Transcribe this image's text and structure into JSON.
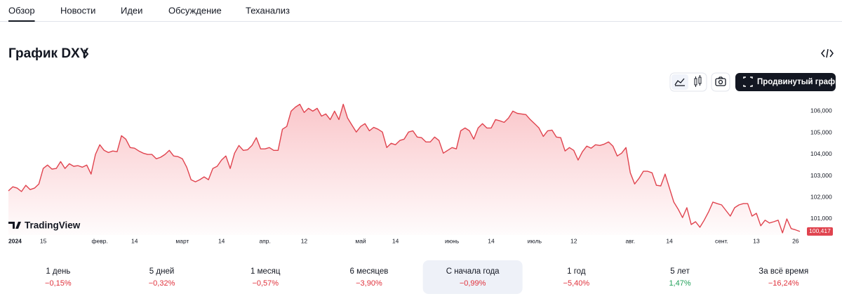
{
  "tabs": [
    "Обзор",
    "Новости",
    "Идеи",
    "Обсуждение",
    "Теханализ"
  ],
  "active_tab": 0,
  "header": {
    "title": "График DXY"
  },
  "toolbar": {
    "advanced_button": "Продвинутый график"
  },
  "chart_data": {
    "type": "line",
    "color": "#e0434e",
    "watermark": "TradingView",
    "values": [
      102.3,
      102.49,
      102.43,
      102.27,
      102.56,
      102.36,
      102.43,
      102.62,
      103.34,
      103.5,
      103.31,
      103.34,
      103.66,
      103.34,
      103.56,
      103.44,
      103.47,
      103.4,
      103.5,
      103.08,
      103.99,
      104.44,
      104.18,
      104.08,
      104.15,
      104.12,
      104.86,
      104.7,
      104.31,
      104.28,
      104.15,
      104.05,
      103.99,
      103.99,
      103.79,
      103.86,
      103.99,
      104.18,
      103.92,
      103.89,
      103.79,
      103.4,
      102.82,
      102.72,
      102.82,
      102.95,
      102.82,
      103.34,
      103.44,
      103.73,
      103.92,
      103.34,
      104.05,
      104.41,
      104.18,
      104.21,
      104.41,
      104.77,
      104.25,
      104.25,
      104.31,
      104.18,
      104.18,
      105.16,
      105.29,
      106.0,
      106.19,
      106.32,
      105.94,
      106.13,
      106.0,
      106.13,
      105.77,
      105.87,
      105.61,
      106.0,
      105.61,
      106.32,
      105.68,
      105.35,
      105.03,
      105.29,
      105.42,
      105.09,
      105.25,
      105.16,
      105.03,
      104.31,
      104.51,
      104.44,
      104.64,
      104.7,
      105.03,
      105.09,
      104.8,
      104.77,
      104.57,
      104.57,
      104.8,
      104.64,
      104.05,
      104.18,
      104.31,
      104.25,
      105.09,
      105.22,
      105.09,
      104.7,
      105.22,
      105.42,
      105.22,
      105.22,
      105.61,
      105.55,
      105.48,
      105.68,
      106.0,
      105.9,
      105.87,
      105.84,
      105.61,
      105.42,
      105.22,
      104.83,
      105.09,
      105.12,
      104.8,
      104.77,
      104.15,
      104.31,
      104.18,
      103.73,
      104.12,
      104.38,
      104.28,
      104.44,
      104.41,
      104.47,
      104.57,
      104.38,
      103.92,
      104.05,
      104.31,
      103.14,
      102.62,
      102.88,
      103.21,
      103.21,
      103.14,
      102.56,
      102.53,
      103.08,
      102.43,
      101.78,
      101.45,
      101.06,
      101.52,
      100.74,
      100.87,
      100.61,
      100.94,
      101.32,
      101.78,
      101.71,
      101.65,
      101.39,
      101.13,
      101.52,
      101.65,
      101.71,
      101.71,
      101.13,
      101.26,
      100.68,
      100.94,
      100.81,
      100.87,
      100.94,
      100.35,
      101.0,
      100.55,
      100.49,
      100.417
    ],
    "xlim": [
      0,
      182
    ],
    "xticks": [
      {
        "value": 0,
        "label": "2024"
      },
      {
        "value": 8,
        "label": "15"
      },
      {
        "value": 21,
        "label": "февр."
      },
      {
        "value": 29,
        "label": "14"
      },
      {
        "value": 40,
        "label": "март"
      },
      {
        "value": 49,
        "label": "14"
      },
      {
        "value": 59,
        "label": "апр."
      },
      {
        "value": 68,
        "label": "12"
      },
      {
        "value": 81,
        "label": "май"
      },
      {
        "value": 89,
        "label": "14"
      },
      {
        "value": 102,
        "label": "июнь"
      },
      {
        "value": 111,
        "label": "14"
      },
      {
        "value": 121,
        "label": "июль"
      },
      {
        "value": 130,
        "label": "12"
      },
      {
        "value": 143,
        "label": "авг."
      },
      {
        "value": 152,
        "label": "14"
      },
      {
        "value": 164,
        "label": "сент."
      },
      {
        "value": 172,
        "label": "13"
      },
      {
        "value": 181,
        "label": "26"
      }
    ],
    "ylim": [
      100.25,
      106.6
    ],
    "yticks": [
      {
        "value": 101,
        "label": "101,000"
      },
      {
        "value": 102,
        "label": "102,000"
      },
      {
        "value": 103,
        "label": "103,000"
      },
      {
        "value": 104,
        "label": "104,000"
      },
      {
        "value": 105,
        "label": "105,000"
      },
      {
        "value": 106,
        "label": "106,000"
      }
    ],
    "price_label": {
      "value": 100.417,
      "label": "100,417"
    }
  },
  "periods": [
    {
      "label": "1 день",
      "change": "−0,15%",
      "color": "#e0323c"
    },
    {
      "label": "5 дней",
      "change": "−0,32%",
      "color": "#e0323c"
    },
    {
      "label": "1 месяц",
      "change": "−0,57%",
      "color": "#e0323c"
    },
    {
      "label": "6 месяцев",
      "change": "−3,90%",
      "color": "#e0323c"
    },
    {
      "label": "С начала года",
      "change": "−0,99%",
      "color": "#e0323c"
    },
    {
      "label": "1 год",
      "change": "−5,40%",
      "color": "#e0323c"
    },
    {
      "label": "5 лет",
      "change": "1,47%",
      "color": "#22a05a"
    },
    {
      "label": "За всё время",
      "change": "−16,24%",
      "color": "#e0323c"
    }
  ],
  "selected_period": 4
}
